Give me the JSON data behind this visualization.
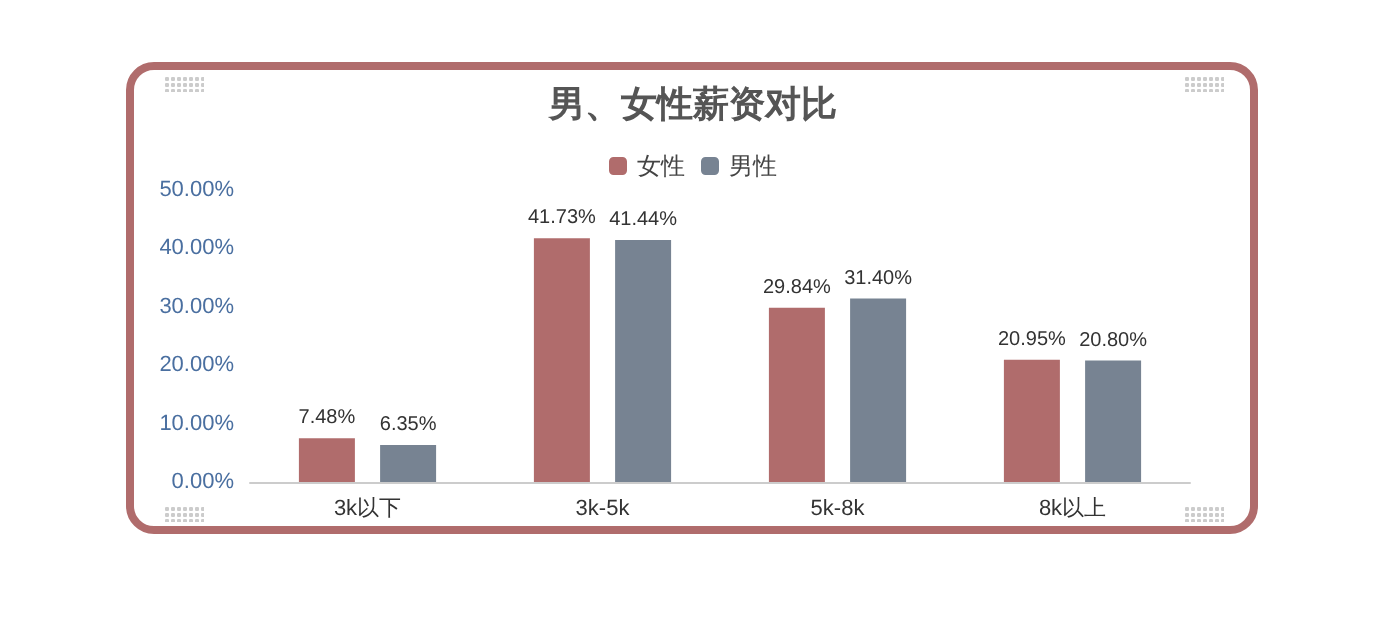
{
  "chart_data": {
    "type": "bar",
    "title": "男、女性薪资对比",
    "categories": [
      "3k以下",
      "3k-5k",
      "5k-8k",
      "8k以上"
    ],
    "series": [
      {
        "name": "女性",
        "color": "#b06c6c",
        "values": [
          7.48,
          41.73,
          29.84,
          20.95
        ],
        "value_labels": [
          "7.48%",
          "41.73%",
          "29.84%",
          "20.95%"
        ]
      },
      {
        "name": "男性",
        "color": "#778392",
        "values": [
          6.35,
          41.44,
          31.4,
          20.8
        ],
        "value_labels": [
          "6.35%",
          "41.44%",
          "31.40%",
          "20.80%"
        ]
      }
    ],
    "ylim": [
      0,
      50
    ],
    "yticks": [
      {
        "value": 0,
        "label": "0.00%"
      },
      {
        "value": 10,
        "label": "10.00%"
      },
      {
        "value": 20,
        "label": "20.00%"
      },
      {
        "value": 30,
        "label": "30.00%"
      },
      {
        "value": 40,
        "label": "40.00%"
      },
      {
        "value": 50,
        "label": "50.00%"
      }
    ],
    "grid": false,
    "legend": "top"
  }
}
